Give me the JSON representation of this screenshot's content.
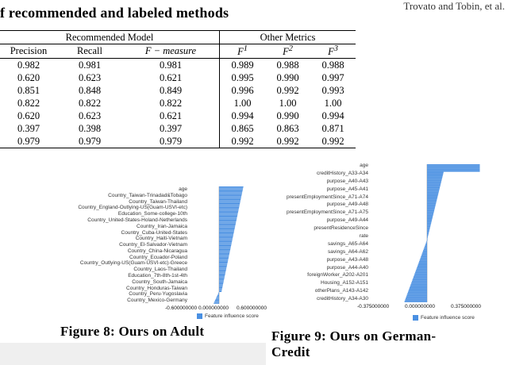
{
  "header_right": "Trovato and Tobin, et al.",
  "table_title": "f recommended and labeled methods",
  "table": {
    "group_left": "Recommended Model",
    "group_right": "Other Metrics",
    "columns": [
      "Precision",
      "Recall",
      "F − measure",
      "F",
      "F",
      "F"
    ],
    "superscripts": [
      "1",
      "2",
      "3"
    ],
    "rows": [
      [
        "0.982",
        "0.981",
        "0.981",
        "0.989",
        "0.988",
        "0.988"
      ],
      [
        "0.620",
        "0.623",
        "0.621",
        "0.995",
        "0.990",
        "0.997"
      ],
      [
        "0.851",
        "0.848",
        "0.849",
        "0.996",
        "0.992",
        "0.993"
      ],
      [
        "0.822",
        "0.822",
        "0.822",
        "1.00",
        "1.00",
        "1.00"
      ],
      [
        "0.620",
        "0.623",
        "0.621",
        "0.994",
        "0.990",
        "0.994"
      ],
      [
        "0.397",
        "0.398",
        "0.397",
        "0.865",
        "0.863",
        "0.871"
      ],
      [
        "0.979",
        "0.979",
        "0.979",
        "0.992",
        "0.992",
        "0.992"
      ]
    ]
  },
  "figure8": {
    "caption": "Figure 8: Ours on Adult",
    "labels": [
      "age",
      "Country_Taiwan-Trinadad&Tobago",
      "Country_Taiwan-Thailand",
      "Country_England-Outlying-US(Guam-USVI-etc)",
      "Education_Some-college-10th",
      "Country_United-States-Holand-Netherlands",
      "Country_Iran-Jamaica",
      "Country_Cuba-United-States",
      "Country_Haiti-Vietnam",
      "Country_El-Salvador-Vietnam",
      "Country_China-Nicaragua",
      "Country_Ecuador-Poland",
      "Country_Outlying-US(Guam-USVI-etc)-Greece",
      "Country_Laos-Thailand",
      "Education_7th-8th-1st-4th",
      "Country_South-Jamaica",
      "Country_Honduras-Taiwan",
      "Country_Peru-Yugoslavia",
      "Country_Mexico-Germany"
    ],
    "ticks": [
      "-0.600000000",
      "0.000000000",
      "0.600000000"
    ],
    "legend": "Feature influence score"
  },
  "figure9": {
    "caption_line1": "Figure 9: Ours on German-",
    "caption_line2": "Credit",
    "labels": [
      "age",
      "creditHistory_A33-A34",
      "purpose_A40-A43",
      "purpose_A45-A41",
      "presentEmploymentSince_A71-A74",
      "purpose_A49-A48",
      "presentEmploymentSince_A71-A75",
      "purpose_A49-A44",
      "presentResidenceSince",
      "rate",
      "savings_A65-A64",
      "savings_A64-A62",
      "purpose_A43-A48",
      "purpose_A44-A40",
      "foreignWorker_A202-A201",
      "Housing_A152-A151",
      "otherPlans_A143-A142",
      "creditHistory_A34-A30"
    ],
    "ticks": [
      "-0.375000000",
      "0.000000000",
      "0.375000000"
    ],
    "legend": "Feature influence score",
    "color": "#4a90e2"
  }
}
